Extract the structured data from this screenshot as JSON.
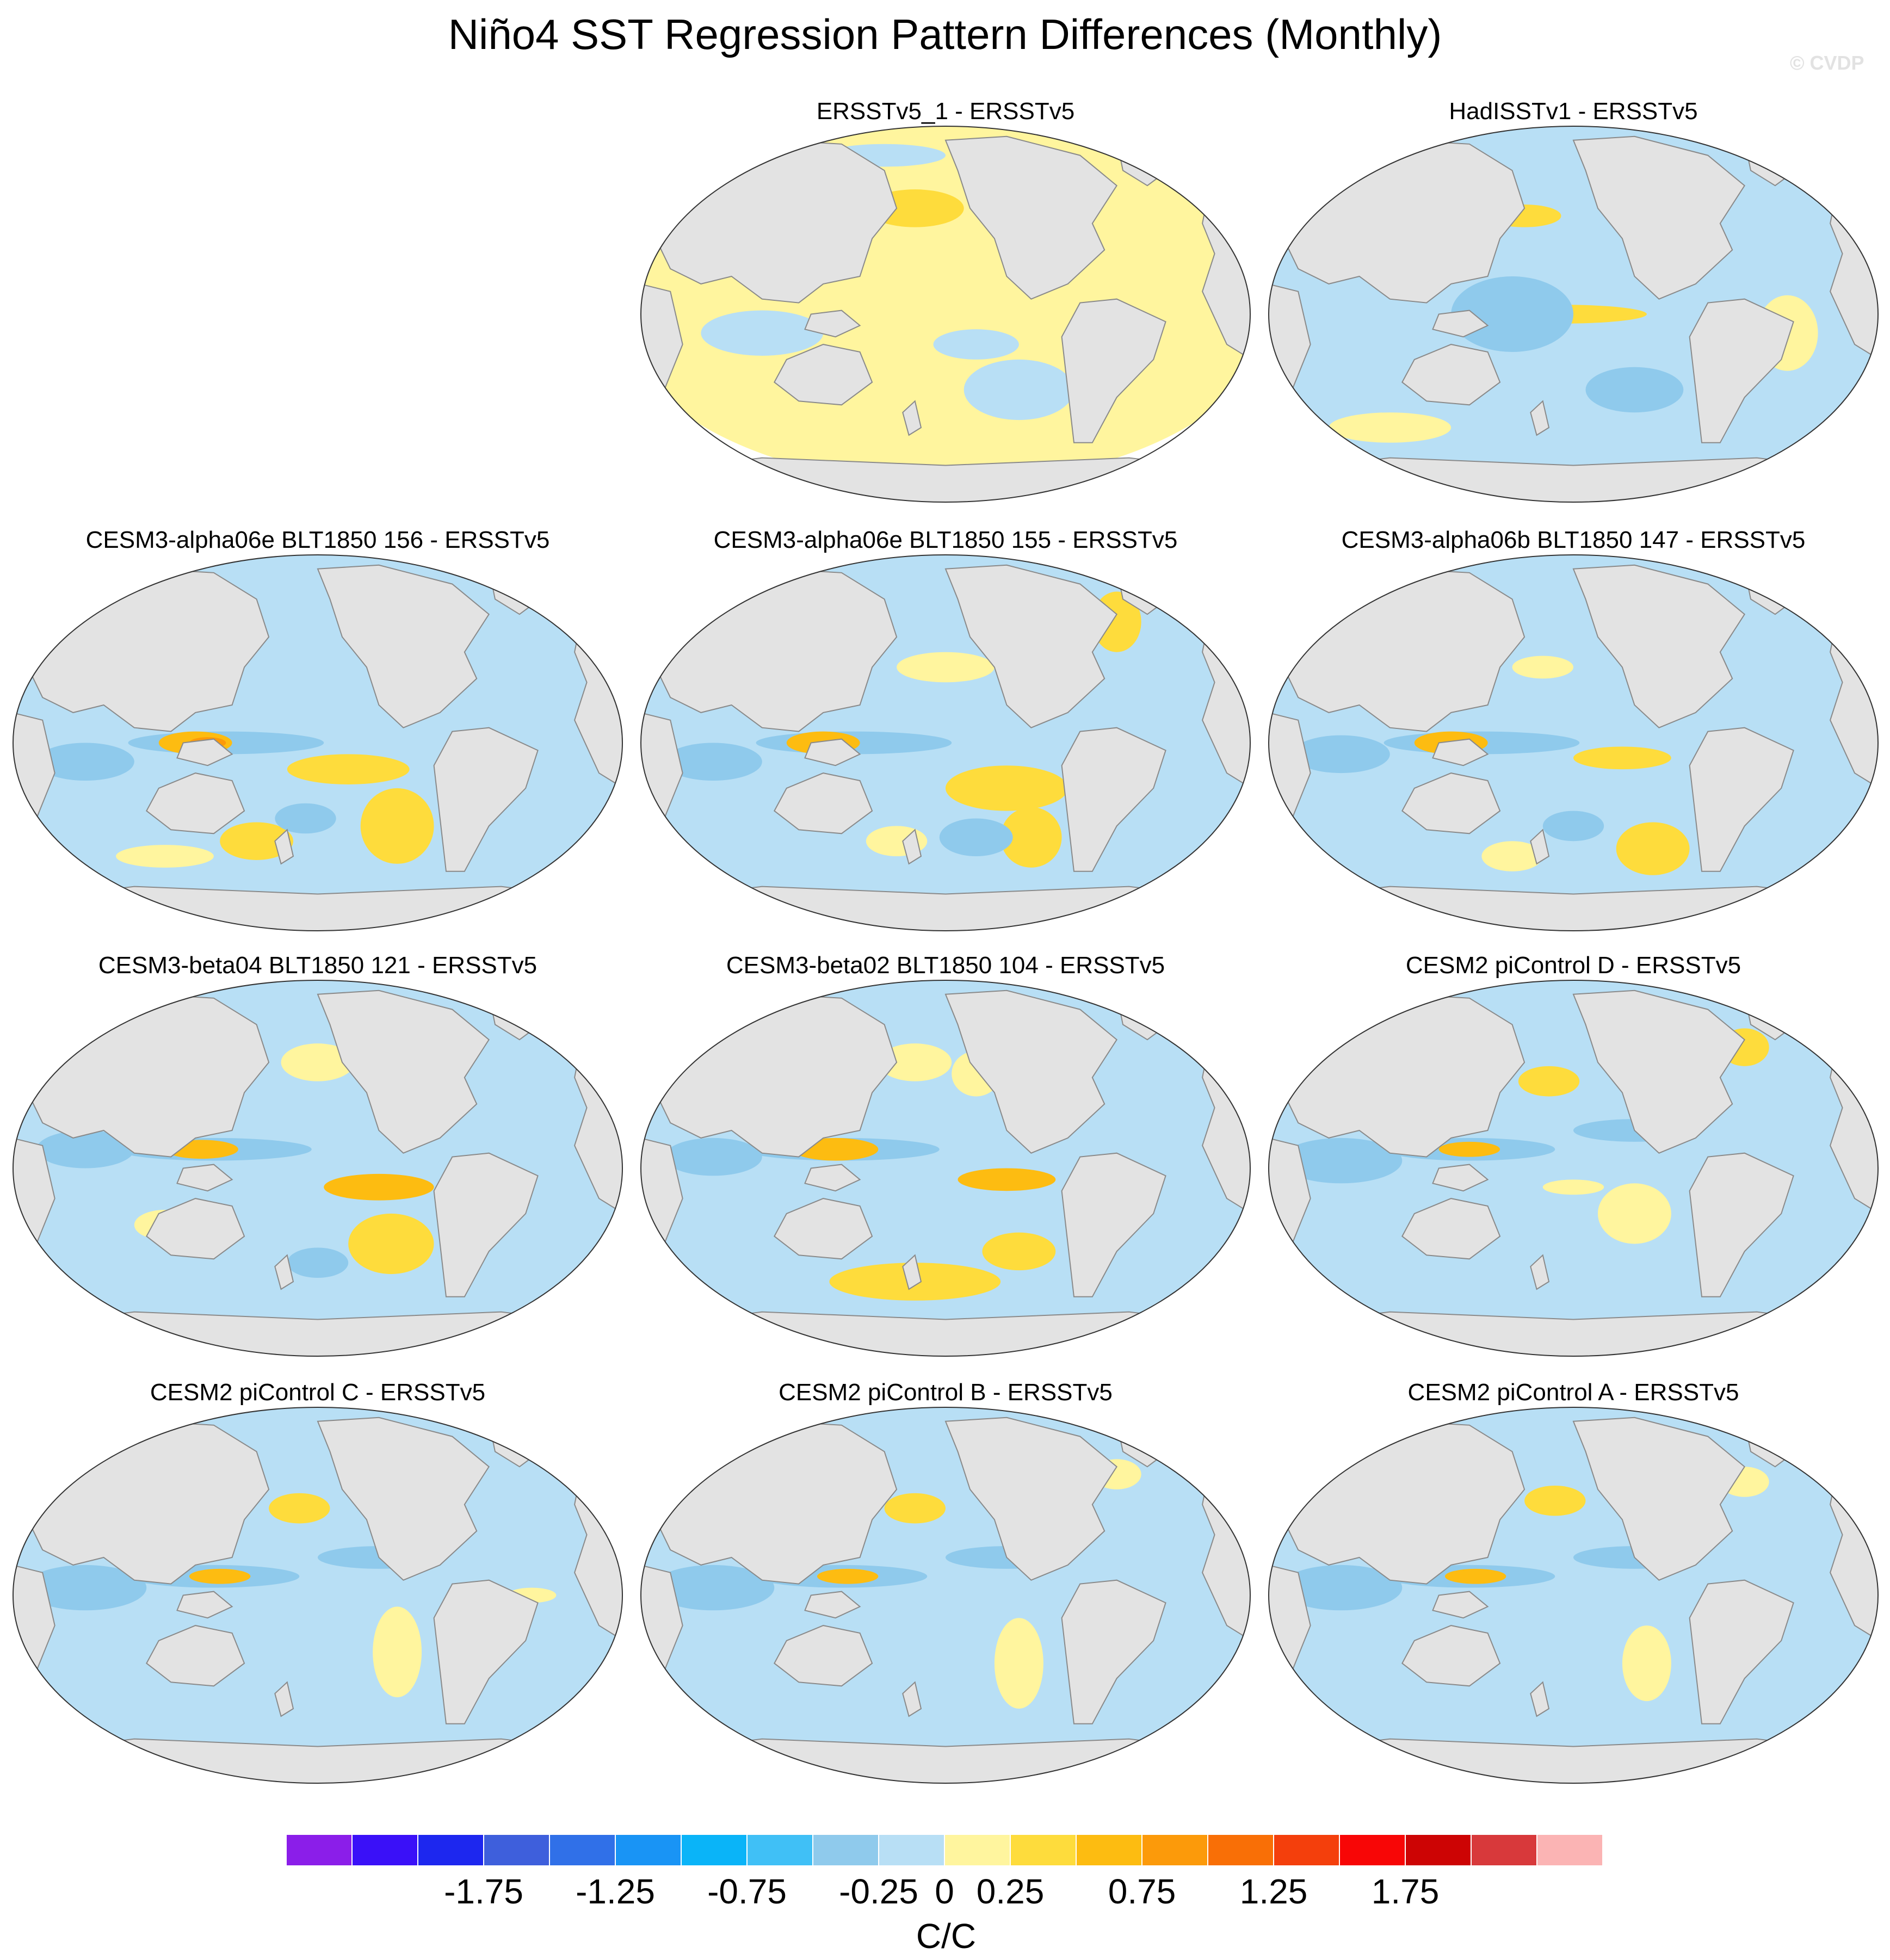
{
  "title": "Niño4 SST Regression Pattern Differences (Monthly)",
  "watermark": "© CVDP",
  "map_projection": "robinson-global",
  "colors": {
    "land": "#e3e3e3",
    "coastline": "#8a8a8a",
    "contour_levels": [
      "#8b1ee9",
      "#3a10f8",
      "#1d27ef",
      "#3e5fdc",
      "#3070e8",
      "#1994f5",
      "#0ab4f8",
      "#40c0f6",
      "#8fcaec",
      "#b8dff5",
      "#fff59e",
      "#fedc3c",
      "#fdbc11",
      "#fc9a0a",
      "#f96f06",
      "#f43f0c",
      "#f80606",
      "#cd0404",
      "#d8393b",
      "#fbb4b4"
    ]
  },
  "panels": [
    {
      "title": "ERSSTv5_1 - ERSSTv5",
      "dominant": "weak-positive"
    },
    {
      "title": "HadISSTv1 - ERSSTv5",
      "dominant": "weak-negative"
    },
    {
      "title": "CESM3-alpha06e BLT1850 156 - ERSSTv5",
      "dominant": "negative"
    },
    {
      "title": "CESM3-alpha06e BLT1850 155 - ERSSTv5",
      "dominant": "negative"
    },
    {
      "title": "CESM3-alpha06b BLT1850 147 - ERSSTv5",
      "dominant": "negative"
    },
    {
      "title": "CESM3-beta04 BLT1850 121 - ERSSTv5",
      "dominant": "negative"
    },
    {
      "title": "CESM3-beta02 BLT1850 104 - ERSSTv5",
      "dominant": "negative"
    },
    {
      "title": "CESM2 piControl D - ERSSTv5",
      "dominant": "negative"
    },
    {
      "title": "CESM2 piControl C - ERSSTv5",
      "dominant": "negative"
    },
    {
      "title": "CESM2 piControl B - ERSSTv5",
      "dominant": "negative"
    },
    {
      "title": "CESM2 piControl A - ERSSTv5",
      "dominant": "negative"
    }
  ],
  "colorbar": {
    "levels": [
      -2.25,
      -2.0,
      -1.75,
      -1.5,
      -1.25,
      -1.0,
      -0.75,
      -0.5,
      -0.25,
      0,
      0.25,
      0.5,
      0.75,
      1.0,
      1.25,
      1.5,
      1.75,
      2.0,
      2.25
    ],
    "tick_labels": [
      "-1.75",
      "-1.25",
      "-0.75",
      "-0.25",
      "0",
      "0.25",
      "0.75",
      "1.25",
      "1.75"
    ],
    "units": "C/C"
  }
}
